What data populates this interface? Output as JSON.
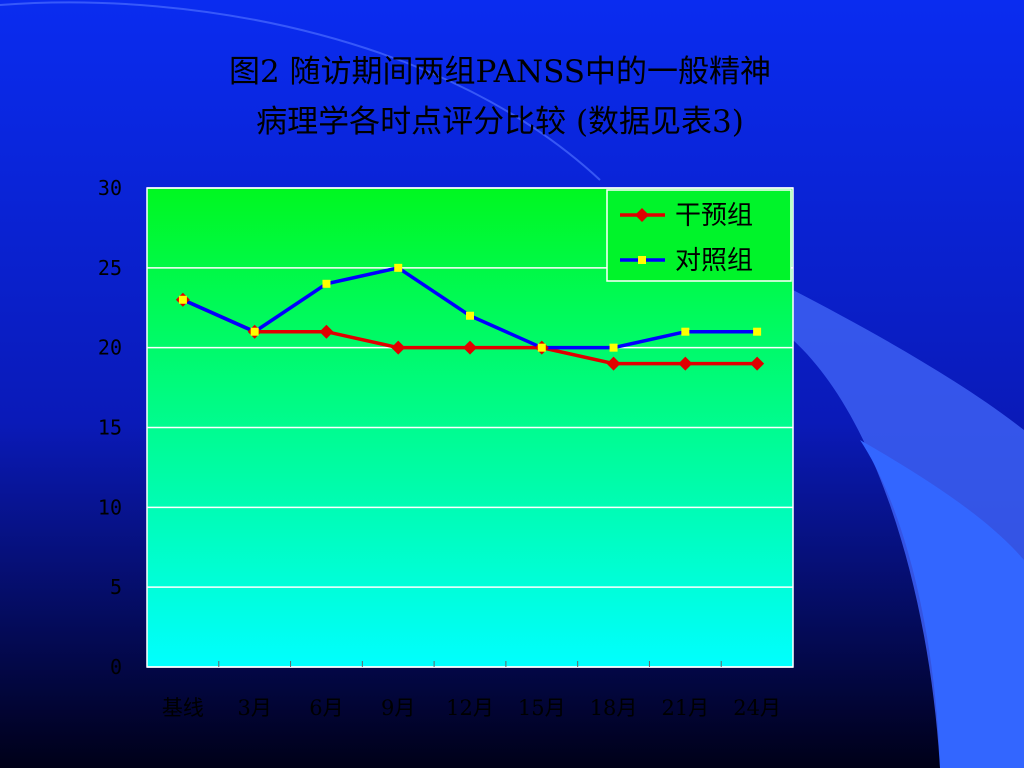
{
  "chart_data": {
    "type": "line",
    "title": [
      "图2 随访期间两组PANSS中的一般精神",
      "病理学各时点评分比较 (数据见表3)"
    ],
    "categories": [
      "基线",
      "3月",
      "6月",
      "9月",
      "12月",
      "15月",
      "18月",
      "21月",
      "24月"
    ],
    "series": [
      {
        "name": "干预组",
        "color": "#e00000",
        "marker": "diamond",
        "marker_color": "#e00000",
        "values": [
          23,
          21,
          21,
          20,
          20,
          20,
          19,
          19,
          19
        ]
      },
      {
        "name": "对照组",
        "color": "#0000ff",
        "marker": "square",
        "marker_color": "#ffff00",
        "values": [
          23,
          21,
          24,
          25,
          22,
          20,
          20,
          21,
          21
        ]
      }
    ],
    "ylim": [
      0,
      30
    ],
    "yticks": [
      0,
      5,
      10,
      15,
      20,
      25,
      30
    ],
    "grid": true,
    "legend": "upper right"
  }
}
